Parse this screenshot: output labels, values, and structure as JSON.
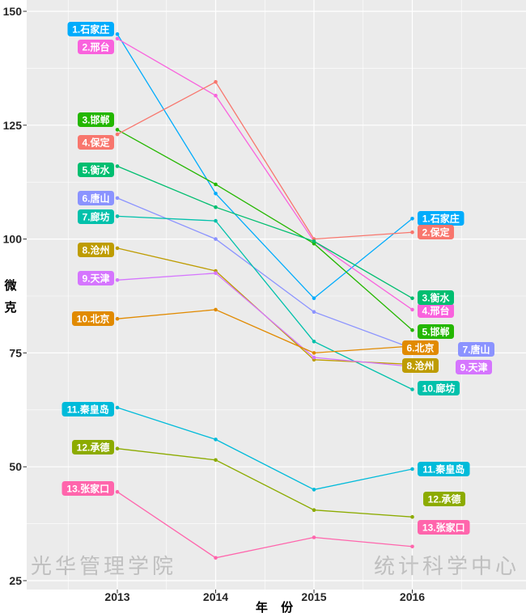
{
  "figure": {
    "watermark_left": "光华管理学院",
    "watermark_right": "统计科学中心"
  },
  "chart_data": {
    "type": "line",
    "title": "",
    "xlabel": "年 份",
    "ylabel": "微 克",
    "x": [
      2013,
      2014,
      2015,
      2016
    ],
    "x_tick_labels": [
      "2013",
      "2014",
      "2015",
      "2016"
    ],
    "yticks": [
      25,
      50,
      75,
      100,
      125,
      150
    ],
    "ylim": [
      25,
      150
    ],
    "grid": "white major + minor gridlines on gray panel",
    "legend": "none (ranked city labels at both line ends)",
    "panel_bg": "#EBEBEB",
    "grid_color": "#FFFFFF",
    "axis_text_color": "#262626",
    "label_text_color": "#FFFFFF",
    "watermark_color": "#A3A3A3",
    "unit_note": "微克 (micrograms, PM2.5)",
    "series": [
      {
        "name": "石家庄",
        "color": "#00ACFC",
        "values": [
          145,
          110,
          87,
          104.5
        ],
        "left_label": "1.石家庄",
        "right_label": "1.石家庄"
      },
      {
        "name": "邢台",
        "color": "#F962DD",
        "values": [
          144,
          131.5,
          99.5,
          84.5
        ],
        "left_label": "2.邢台",
        "right_label": "4.邢台"
      },
      {
        "name": "邯郸",
        "color": "#24B700",
        "values": [
          124,
          112,
          99,
          80
        ],
        "left_label": "3.邯郸",
        "right_label": "5.邯郸"
      },
      {
        "name": "保定",
        "color": "#F8766D",
        "values": [
          123,
          134.5,
          100,
          101.5
        ],
        "left_label": "4.保定",
        "right_label": "2.保定"
      },
      {
        "name": "衡水",
        "color": "#00BE70",
        "values": [
          116,
          107,
          99.5,
          87
        ],
        "left_label": "5.衡水",
        "right_label": "3.衡水"
      },
      {
        "name": "唐山",
        "color": "#8B93FF",
        "values": [
          109,
          100,
          84,
          76
        ],
        "left_label": "6.唐山",
        "right_label": "7.唐山"
      },
      {
        "name": "廊坊",
        "color": "#00C1AB",
        "values": [
          105,
          104,
          77.5,
          67
        ],
        "left_label": "7.廊坊",
        "right_label": "10.廊坊"
      },
      {
        "name": "沧州",
        "color": "#BE9C00",
        "values": [
          98,
          93,
          73.5,
          72.5
        ],
        "left_label": "8.沧州",
        "right_label": "8.沧州"
      },
      {
        "name": "天津",
        "color": "#D575FE",
        "values": [
          91,
          92.5,
          74,
          72
        ],
        "left_label": "9.天津",
        "right_label": "9.天津"
      },
      {
        "name": "北京",
        "color": "#E18A00",
        "values": [
          82.5,
          84.5,
          75,
          76.5
        ],
        "left_label": "10.北京",
        "right_label": "6.北京"
      },
      {
        "name": "秦皇岛",
        "color": "#00BBDA",
        "values": [
          63,
          56,
          45,
          49.5
        ],
        "left_label": "11.秦皇岛",
        "right_label": "11.秦皇岛"
      },
      {
        "name": "承德",
        "color": "#8CAB00",
        "values": [
          54,
          51.5,
          40.5,
          39
        ],
        "left_label": "12.承德",
        "right_label": "12.承德"
      },
      {
        "name": "张家口",
        "color": "#FF65AC",
        "values": [
          44.5,
          30,
          34.5,
          32.5
        ],
        "left_label": "13.张家口",
        "right_label": "13.张家口"
      }
    ]
  }
}
